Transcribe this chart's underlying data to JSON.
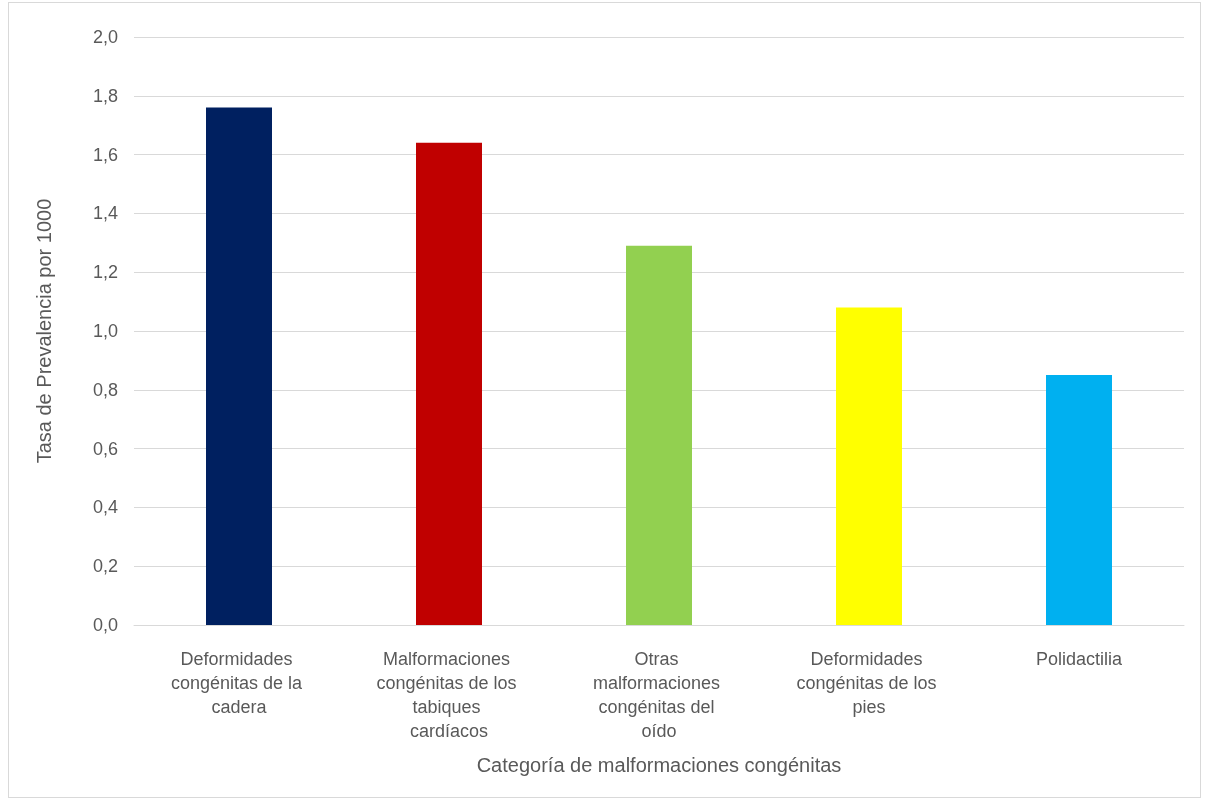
{
  "chart_data": {
    "type": "bar",
    "xlabel": "Categoría de malformaciones congénitas",
    "ylabel": "Tasa de Prevalencia por 1000",
    "categories": [
      "Deformidades congénitas de la cadera",
      "Malformaciones congénitas de los tabiques cardíacos",
      "Otras malformaciones congénitas del oído",
      "Deformidades congénitas de los pies",
      "Polidactilia"
    ],
    "values": [
      1.76,
      1.64,
      1.29,
      1.08,
      0.85
    ],
    "colors": [
      "#002060",
      "#c00000",
      "#92d050",
      "#ffff00",
      "#00b0f0"
    ],
    "ylim": [
      0,
      2
    ],
    "yticks": [
      {
        "value": 0,
        "label": "0,0"
      },
      {
        "value": 0.2,
        "label": "0,2"
      },
      {
        "value": 0.4,
        "label": "0,4"
      },
      {
        "value": 0.6,
        "label": "0,6"
      },
      {
        "value": 0.8,
        "label": "0,8"
      },
      {
        "value": 1,
        "label": "1,0"
      },
      {
        "value": 1.2,
        "label": "1,2"
      },
      {
        "value": 1.4,
        "label": "1,4"
      },
      {
        "value": 1.6,
        "label": "1,6"
      },
      {
        "value": 1.8,
        "label": "1,8"
      },
      {
        "value": 2,
        "label": "2,0"
      }
    ],
    "grid": true
  }
}
